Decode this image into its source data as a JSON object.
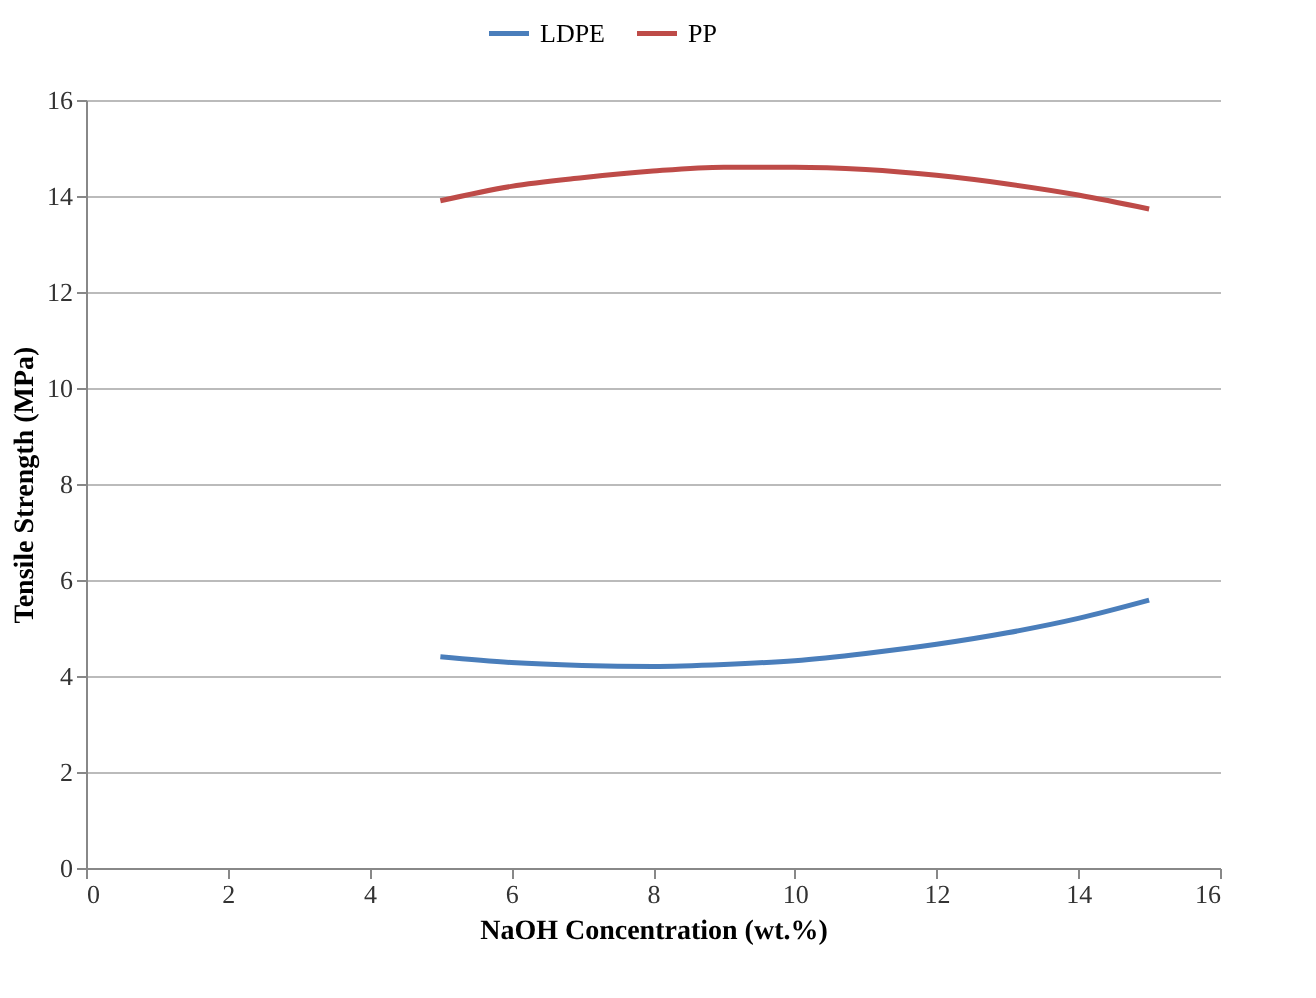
{
  "chart_data": {
    "type": "line",
    "xlabel": "NaOH Concentration (wt.%)",
    "ylabel": "Tensile Strength (MPa)",
    "xlim": [
      0,
      16
    ],
    "xticks": [
      0,
      2,
      4,
      6,
      8,
      10,
      12,
      14,
      16
    ],
    "ylim": [
      0,
      16
    ],
    "yticks": [
      0,
      2,
      4,
      6,
      8,
      10,
      12,
      14,
      16
    ],
    "grid": "y",
    "legend": "top",
    "marker": "none",
    "line_style": "solid",
    "series": [
      {
        "name": "LDPE",
        "color": "#4a7ebb",
        "x": [
          5,
          6,
          7,
          8,
          9,
          10,
          11,
          12,
          13,
          14,
          15
        ],
        "values": [
          4.4,
          4.28,
          4.22,
          4.2,
          4.24,
          4.32,
          4.47,
          4.66,
          4.9,
          5.2,
          5.58
        ]
      },
      {
        "name": "PP",
        "color": "#be4b48",
        "x": [
          5,
          6,
          7,
          8,
          9,
          10,
          11,
          12,
          13,
          14,
          15
        ],
        "values": [
          13.9,
          14.2,
          14.38,
          14.52,
          14.6,
          14.6,
          14.55,
          14.43,
          14.25,
          14.02,
          13.73
        ]
      }
    ]
  }
}
